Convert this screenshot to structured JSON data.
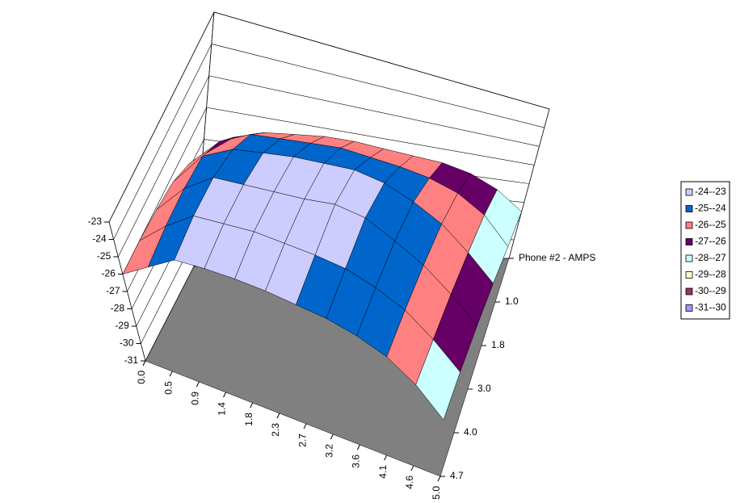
{
  "chart_data": {
    "type": "surface",
    "categories": [
      "0.0",
      "0.5",
      "0.9",
      "1.4",
      "1.8",
      "2.3",
      "2.7",
      "3.2",
      "3.6",
      "4.1",
      "4.6",
      "5.0"
    ],
    "series": [
      {
        "name": "Phone #2 - AMPS",
        "values": [
          -27.5,
          -26.8,
          -26.5,
          -26.4,
          -26.3,
          -26.3,
          -26.4,
          -26.5,
          -26.6,
          -26.9,
          -27.5,
          -28.5
        ]
      },
      {
        "name": "1.0",
        "values": [
          -26.8,
          -25.8,
          -25.3,
          -25.2,
          -25.1,
          -25.0,
          -25.1,
          -25.2,
          -25.4,
          -25.8,
          -26.6,
          -28.0
        ]
      },
      {
        "name": "1.8",
        "values": [
          -26.3,
          -25.0,
          -24.4,
          -24.2,
          -24.0,
          -23.9,
          -23.8,
          -24.0,
          -24.5,
          -25.2,
          -26.3,
          -27.6
        ]
      },
      {
        "name": "3.0",
        "values": [
          -26.1,
          -24.8,
          -23.9,
          -23.8,
          -23.7,
          -23.6,
          -23.4,
          -23.6,
          -24.3,
          -25.1,
          -26.2,
          -27.5
        ]
      },
      {
        "name": "4.0",
        "values": [
          -26.0,
          -24.8,
          -23.8,
          -23.7,
          -23.6,
          -23.7,
          -23.8,
          -24.0,
          -24.5,
          -25.2,
          -26.3,
          -27.6
        ]
      },
      {
        "name": "4.7",
        "values": [
          -26.0,
          -25.0,
          -24.0,
          -23.9,
          -23.9,
          -24.0,
          -24.2,
          -24.4,
          -24.8,
          -25.4,
          -26.4,
          -27.8
        ]
      }
    ],
    "zlim": [
      -31,
      -23
    ],
    "zticks": [
      -31,
      -30,
      -29,
      -28,
      -27,
      -26,
      -25,
      -24,
      -23
    ],
    "bands": [
      {
        "name": "-24--23",
        "color": "#ccccff",
        "min": -24,
        "max": -23
      },
      {
        "name": "-25--24",
        "color": "#0066cc",
        "min": -25,
        "max": -24
      },
      {
        "name": "-26--25",
        "color": "#ff8080",
        "min": -26,
        "max": -25
      },
      {
        "name": "-27--26",
        "color": "#660066",
        "min": -27,
        "max": -26
      },
      {
        "name": "-28--27",
        "color": "#ccffff",
        "min": -28,
        "max": -27
      },
      {
        "name": "-29--28",
        "color": "#ffffcc",
        "min": -29,
        "max": -28
      },
      {
        "name": "-30--29",
        "color": "#993366",
        "min": -30,
        "max": -29
      },
      {
        "name": "-31--30",
        "color": "#9999ff",
        "min": -31,
        "max": -30
      }
    ],
    "grid": true
  }
}
